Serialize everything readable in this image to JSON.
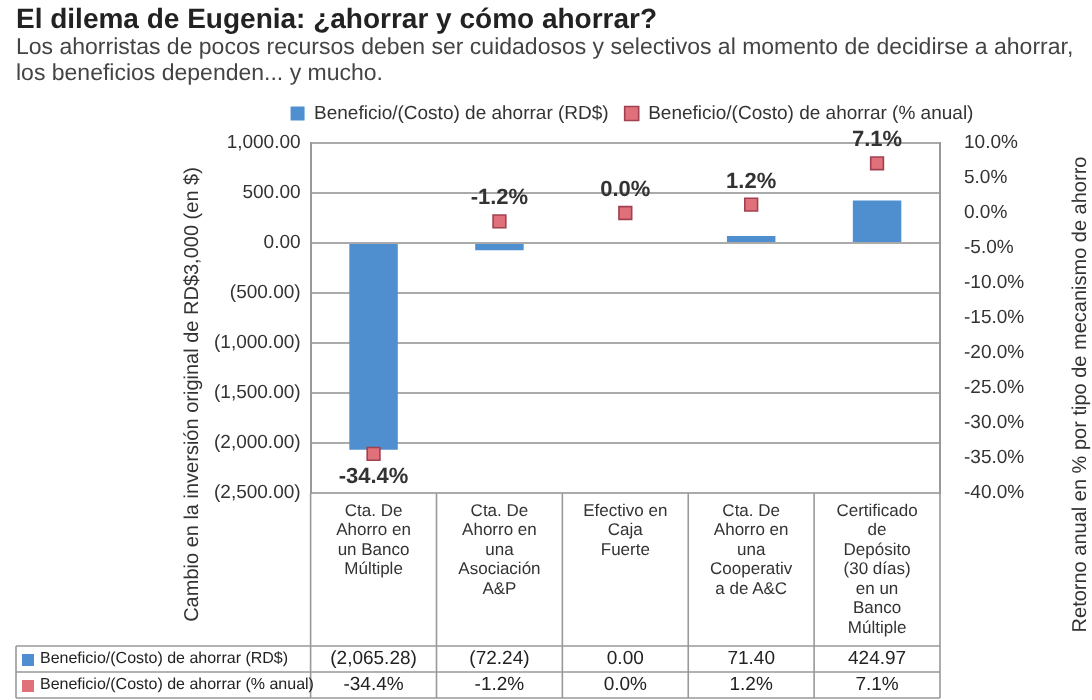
{
  "chart_data": {
    "type": "bar",
    "title": "El dilema de Eugenia: ¿ahorrar y cómo ahorrar?",
    "subtitle": "Los ahorristas de pocos recursos deben ser cuidadosos y selectivos al momento de decidirse a ahorrar, los beneficios dependen... y mucho.",
    "ylabel": "Cambio en la inversión original de RD$3,000 (en $)",
    "y2label": "Retorno anual en % por tipo de mecanismo de ahorro",
    "categories": [
      "Cta. De Ahorro en un Banco Múltiple",
      "Cta. De Ahorro en una Asociación A&P",
      "Efectivo en Caja Fuerte",
      "Cta. De Ahorro en una Cooperativa de A&C",
      "Certificado de Depósito (30 días) en un Banco Múltiple"
    ],
    "series": [
      {
        "name": "Beneficio/(Costo) de ahorrar (RD$)",
        "color": "#4f8fd0",
        "values": [
          -2065.28,
          -72.24,
          0,
          71.4,
          424.97
        ],
        "value_labels": [
          "(2,065.28)",
          "(72.24)",
          "0.00",
          "71.40",
          "424.97"
        ]
      },
      {
        "name": "Beneficio/(Costo) de ahorrar (% anual)",
        "type": "scatter",
        "axis": "y2",
        "marker": "square",
        "color": "#e0707a",
        "values": [
          -34.4,
          -1.2,
          0.0,
          1.2,
          7.1
        ],
        "value_labels": [
          "-34.4%",
          "-1.2%",
          "0.0%",
          "1.2%",
          "7.1%"
        ]
      }
    ],
    "ylim": [
      -2500,
      1000
    ],
    "yticks": [
      {
        "value": -2500,
        "label": "(2,500.00)"
      },
      {
        "value": -2000,
        "label": "(2,000.00)"
      },
      {
        "value": -1500,
        "label": "(1,500.00)"
      },
      {
        "value": -1000,
        "label": "(1,000.00)"
      },
      {
        "value": -500,
        "label": "(500.00)"
      },
      {
        "value": 0,
        "label": "0.00"
      },
      {
        "value": 500,
        "label": "500.00"
      },
      {
        "value": 1000,
        "label": "1,000.00"
      }
    ],
    "y2lim": [
      -40,
      10
    ],
    "y2ticks": [
      {
        "value": -40,
        "label": "-40.0%"
      },
      {
        "value": -35,
        "label": "-35.0%"
      },
      {
        "value": -30,
        "label": "-30.0%"
      },
      {
        "value": -25,
        "label": "-25.0%"
      },
      {
        "value": -20,
        "label": "-20.0%"
      },
      {
        "value": -15,
        "label": "-15.0%"
      },
      {
        "value": -10,
        "label": "-10.0%"
      },
      {
        "value": -5,
        "label": "-5.0%"
      },
      {
        "value": 0,
        "label": "0.0%"
      },
      {
        "value": 5,
        "label": "5.0%"
      },
      {
        "value": 10,
        "label": "10.0%"
      }
    ],
    "grid": "y",
    "legend": "top"
  }
}
